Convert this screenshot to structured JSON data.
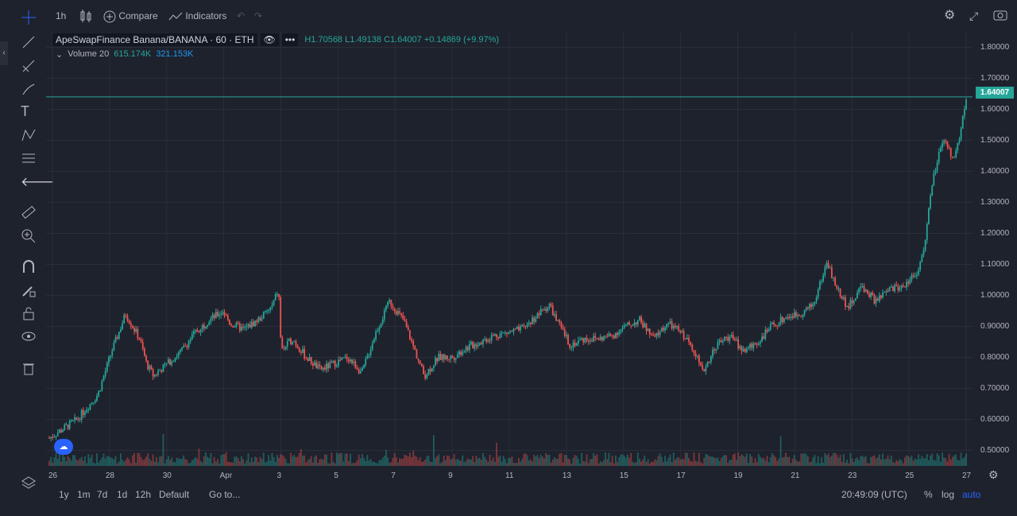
{
  "toolbar": {
    "interval": "1h",
    "compare_label": "Compare",
    "indicators_label": "Indicators"
  },
  "legend": {
    "symbol": "ApeSwapFinance Banana/BANANA",
    "interval": "60",
    "exchange": "ETH",
    "high": "H1.70568",
    "low": "L1.49138",
    "close": "C1.64007",
    "change": "+0.14869 (+9.97%)",
    "volume_label": "Volume 20",
    "volume_value": "615.174K",
    "volume_ma": "321.153K"
  },
  "price_tag": "1.64007",
  "colors": {
    "up": "#26a69a",
    "down": "#ef5350",
    "bg": "#1e222d",
    "grid": "#2a2e39"
  },
  "chart_data": {
    "type": "candlestick",
    "y_ticks": [
      "1.80000",
      "1.70000",
      "1.60000",
      "1.50000",
      "1.40000",
      "1.30000",
      "1.20000",
      "1.10000",
      "1.00000",
      "0.90000",
      "0.80000",
      "0.70000",
      "0.60000",
      "0.50000"
    ],
    "x_ticks": [
      "26",
      "28",
      "30",
      "Apr",
      "3",
      "5",
      "7",
      "9",
      "11",
      "13",
      "15",
      "17",
      "19",
      "21",
      "23",
      "25",
      "27"
    ],
    "ylim": [
      0.45,
      1.85
    ],
    "close_path": [
      [
        0,
        0.54
      ],
      [
        2,
        0.6
      ],
      [
        3.5,
        0.68
      ],
      [
        4.5,
        0.82
      ],
      [
        5.5,
        0.94
      ],
      [
        6.5,
        0.86
      ],
      [
        7,
        0.78
      ],
      [
        7.5,
        0.74
      ],
      [
        8.5,
        0.78
      ],
      [
        9.5,
        0.82
      ],
      [
        10.5,
        0.88
      ],
      [
        11.5,
        0.92
      ],
      [
        12.5,
        0.95
      ],
      [
        13,
        0.91
      ],
      [
        14,
        0.89
      ],
      [
        15,
        0.92
      ],
      [
        16,
        0.96
      ],
      [
        16.5,
        1.02
      ],
      [
        16.7,
        0.82
      ],
      [
        17.5,
        0.86
      ],
      [
        18.5,
        0.8
      ],
      [
        19.5,
        0.76
      ],
      [
        20.5,
        0.78
      ],
      [
        21.5,
        0.8
      ],
      [
        22.5,
        0.75
      ],
      [
        23.5,
        0.88
      ],
      [
        24.5,
        0.98
      ],
      [
        25.5,
        0.92
      ],
      [
        26.5,
        0.8
      ],
      [
        27,
        0.74
      ],
      [
        28,
        0.8
      ],
      [
        29,
        0.8
      ],
      [
        30,
        0.83
      ],
      [
        31,
        0.85
      ],
      [
        32,
        0.87
      ],
      [
        33,
        0.88
      ],
      [
        34,
        0.89
      ],
      [
        35,
        0.93
      ],
      [
        36,
        0.97
      ],
      [
        36.5,
        0.92
      ],
      [
        37.5,
        0.84
      ],
      [
        38.5,
        0.86
      ],
      [
        39.5,
        0.86
      ],
      [
        40.5,
        0.87
      ],
      [
        41.5,
        0.9
      ],
      [
        42.5,
        0.92
      ],
      [
        43.5,
        0.86
      ],
      [
        44.5,
        0.91
      ],
      [
        45.5,
        0.88
      ],
      [
        46.5,
        0.82
      ],
      [
        47,
        0.75
      ],
      [
        48,
        0.84
      ],
      [
        49,
        0.87
      ],
      [
        50,
        0.82
      ],
      [
        51,
        0.85
      ],
      [
        52,
        0.9
      ],
      [
        53,
        0.93
      ],
      [
        54,
        0.94
      ],
      [
        55,
        0.97
      ],
      [
        56,
        1.11
      ],
      [
        56.5,
        1.04
      ],
      [
        57.5,
        0.96
      ],
      [
        58.5,
        1.03
      ],
      [
        59.5,
        0.98
      ],
      [
        60.5,
        1.02
      ],
      [
        61.5,
        1.03
      ],
      [
        62.5,
        1.08
      ],
      [
        63,
        1.15
      ],
      [
        63.5,
        1.35
      ],
      [
        64,
        1.45
      ],
      [
        64.5,
        1.5
      ],
      [
        65,
        1.44
      ],
      [
        65.5,
        1.5
      ],
      [
        66,
        1.64
      ]
    ],
    "x_range": [
      0,
      66
    ]
  },
  "bottom": {
    "ranges": [
      "1y",
      "1m",
      "7d",
      "1d",
      "12h"
    ],
    "default_label": "Default",
    "goto_label": "Go to...",
    "time": "20:49:09 (UTC)",
    "pct": "%",
    "log": "log",
    "auto": "auto"
  }
}
